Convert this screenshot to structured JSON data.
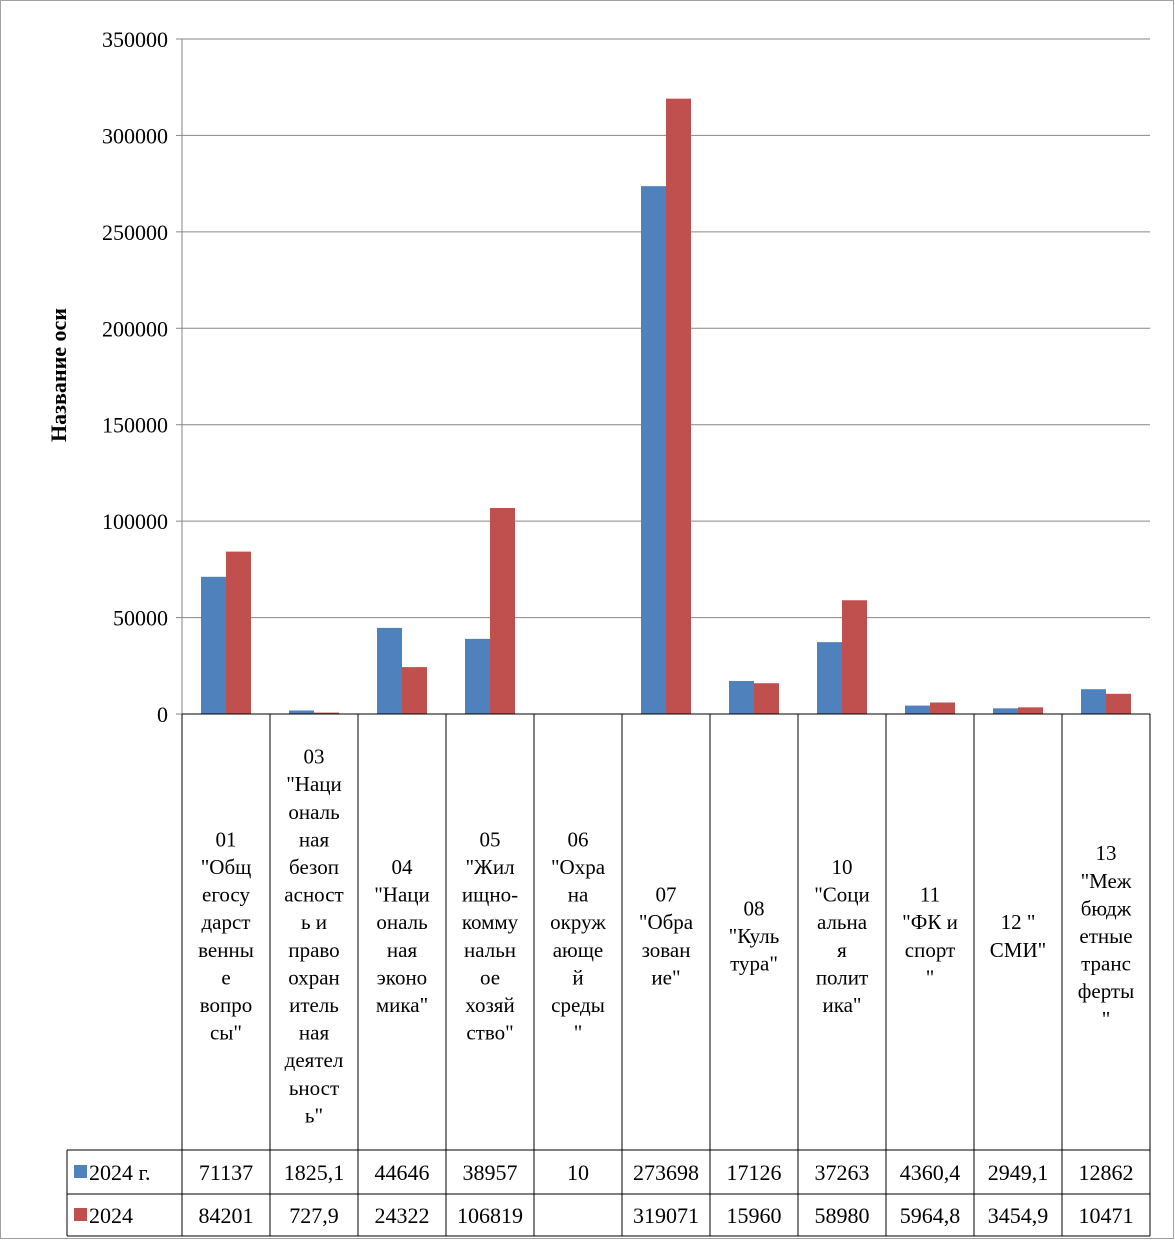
{
  "chart_data": {
    "type": "bar",
    "ylabel": "Название оси",
    "ylim": [
      0,
      350000
    ],
    "yticks": [
      0,
      50000,
      100000,
      150000,
      200000,
      250000,
      300000,
      350000
    ],
    "grid": true,
    "legend": "table-bottom-left",
    "categories": [
      "01 \"Общегосударственные вопросы\"",
      "03 \"Национальная безопасность и правоохранительная деятельность\"",
      "04 \"Национальная экономика\"",
      "05 \"Жилищно-коммунальное хозяйство\"",
      "06 \"Охрана окружающей среды\"",
      "07 \"Образование\"",
      "08 \"Культура\"",
      "10 \"Социальная политика\"",
      "11 \"ФК и спорт\"",
      "12 \" СМИ\"",
      "13 \"Межбюджетные трансферты\""
    ],
    "category_lines": [
      [
        "01",
        "\"Общ",
        "егосу",
        "дарст",
        "венны",
        "е",
        "вопро",
        "сы\""
      ],
      [
        "03",
        "\"Наци",
        "ональ",
        "ная",
        "безоп",
        "асност",
        "ь и",
        "право",
        "охран",
        "итель",
        "ная",
        "деятел",
        "ьност",
        "ь\""
      ],
      [
        "04",
        "\"Наци",
        "ональ",
        "ная",
        "эконо",
        "мика\""
      ],
      [
        "05",
        "\"Жил",
        "ищно-",
        "комму",
        "нальн",
        "ое",
        "хозяй",
        "ство\""
      ],
      [
        "06",
        "\"Охра",
        "на",
        "окруж",
        "ающе",
        "й",
        "среды",
        "\""
      ],
      [
        "07",
        "\"Обра",
        "зован",
        "ие\""
      ],
      [
        "08",
        "\"Куль",
        "тура\""
      ],
      [
        "10",
        "\"Соци",
        "альна",
        "я",
        "полит",
        "ика\""
      ],
      [
        "11",
        "\"ФК и",
        "спорт",
        "\""
      ],
      [
        "12 \"",
        "СМИ\""
      ],
      [
        "13",
        "\"Меж",
        "бюдж",
        "етные",
        "транс",
        "ферты",
        "\""
      ]
    ],
    "series": [
      {
        "name": "2024 г.",
        "color": "#4f81bd",
        "values": [
          71137,
          1825.1,
          44646,
          38957,
          10,
          273698,
          17126,
          37263,
          4360.4,
          2949.1,
          12862
        ],
        "labels": [
          "71137",
          "1825,1",
          "44646",
          "38957",
          "10",
          "273698",
          "17126",
          "37263",
          "4360,4",
          "2949,1",
          "12862"
        ]
      },
      {
        "name": "2024",
        "color": "#c0504d",
        "values": [
          84201,
          727.9,
          24322,
          106819,
          null,
          319071,
          15960,
          58980,
          5964.8,
          3454.9,
          10471
        ],
        "labels": [
          "84201",
          "727,9",
          "24322",
          "106819",
          "",
          "319071",
          "15960",
          "58980",
          "5964,8",
          "3454,9",
          "10471"
        ]
      }
    ]
  }
}
